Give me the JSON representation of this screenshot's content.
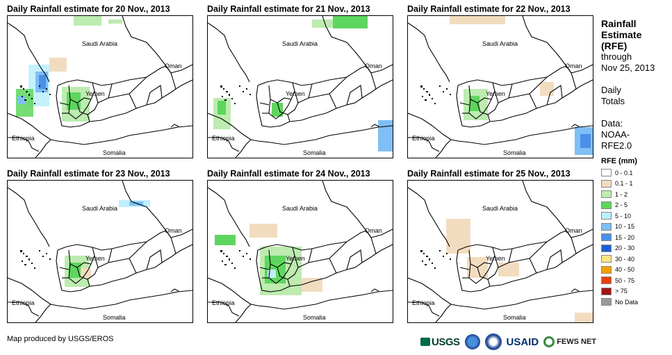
{
  "panels": [
    {
      "title": "Daily Rainfall estimate for 20 Nov., 2013"
    },
    {
      "title": "Daily Rainfall estimate for 21 Nov., 2013"
    },
    {
      "title": "Daily Rainfall estimate for 22 Nov., 2013"
    },
    {
      "title": "Daily Rainfall estimate for 23 Nov., 2013"
    },
    {
      "title": "Daily Rainfall estimate for 24 Nov., 2013"
    },
    {
      "title": "Daily Rainfall estimate for 25 Nov., 2013"
    }
  ],
  "map_labels": {
    "saudi": "Saudi Arabia",
    "oman": "Oman",
    "yemen": "Yemen",
    "ethiopia": "Ethiopia",
    "somalia": "Somalia"
  },
  "legend": {
    "title_line1": "Rainfall",
    "title_line2": "Estimate",
    "title_line3": "(RFE)",
    "through": "through",
    "date": "Nov 25, 2013",
    "daily": "Daily",
    "totals": "Totals",
    "data_label": "Data:",
    "data_source1": "NOAA-",
    "data_source2": "RFE2.0",
    "rfe_header": "RFE (mm)",
    "classes": [
      {
        "label": "0 - 0.1",
        "color": "#ffffff"
      },
      {
        "label": "0.1 - 1",
        "color": "#f2dcc0"
      },
      {
        "label": "1 - 2",
        "color": "#bdebb0"
      },
      {
        "label": "2 - 5",
        "color": "#5ed65e"
      },
      {
        "label": "5 - 10",
        "color": "#bfefff"
      },
      {
        "label": "10 - 15",
        "color": "#7fbff5"
      },
      {
        "label": "15 - 20",
        "color": "#4a90e8"
      },
      {
        "label": "20 - 30",
        "color": "#1e5fd6"
      },
      {
        "label": "30 - 40",
        "color": "#ffe680"
      },
      {
        "label": "40 - 50",
        "color": "#f5a000"
      },
      {
        "label": "50 - 75",
        "color": "#e8400a"
      },
      {
        "label": "> 75",
        "color": "#a01414"
      },
      {
        "label": "No Data",
        "color": "#9a9a9a"
      }
    ]
  },
  "footer": {
    "credit": "Map produced by USGS/EROS",
    "logo_usgs": "USGS",
    "logo_usaid": "USAID",
    "logo_fews": "FEWS NET"
  }
}
